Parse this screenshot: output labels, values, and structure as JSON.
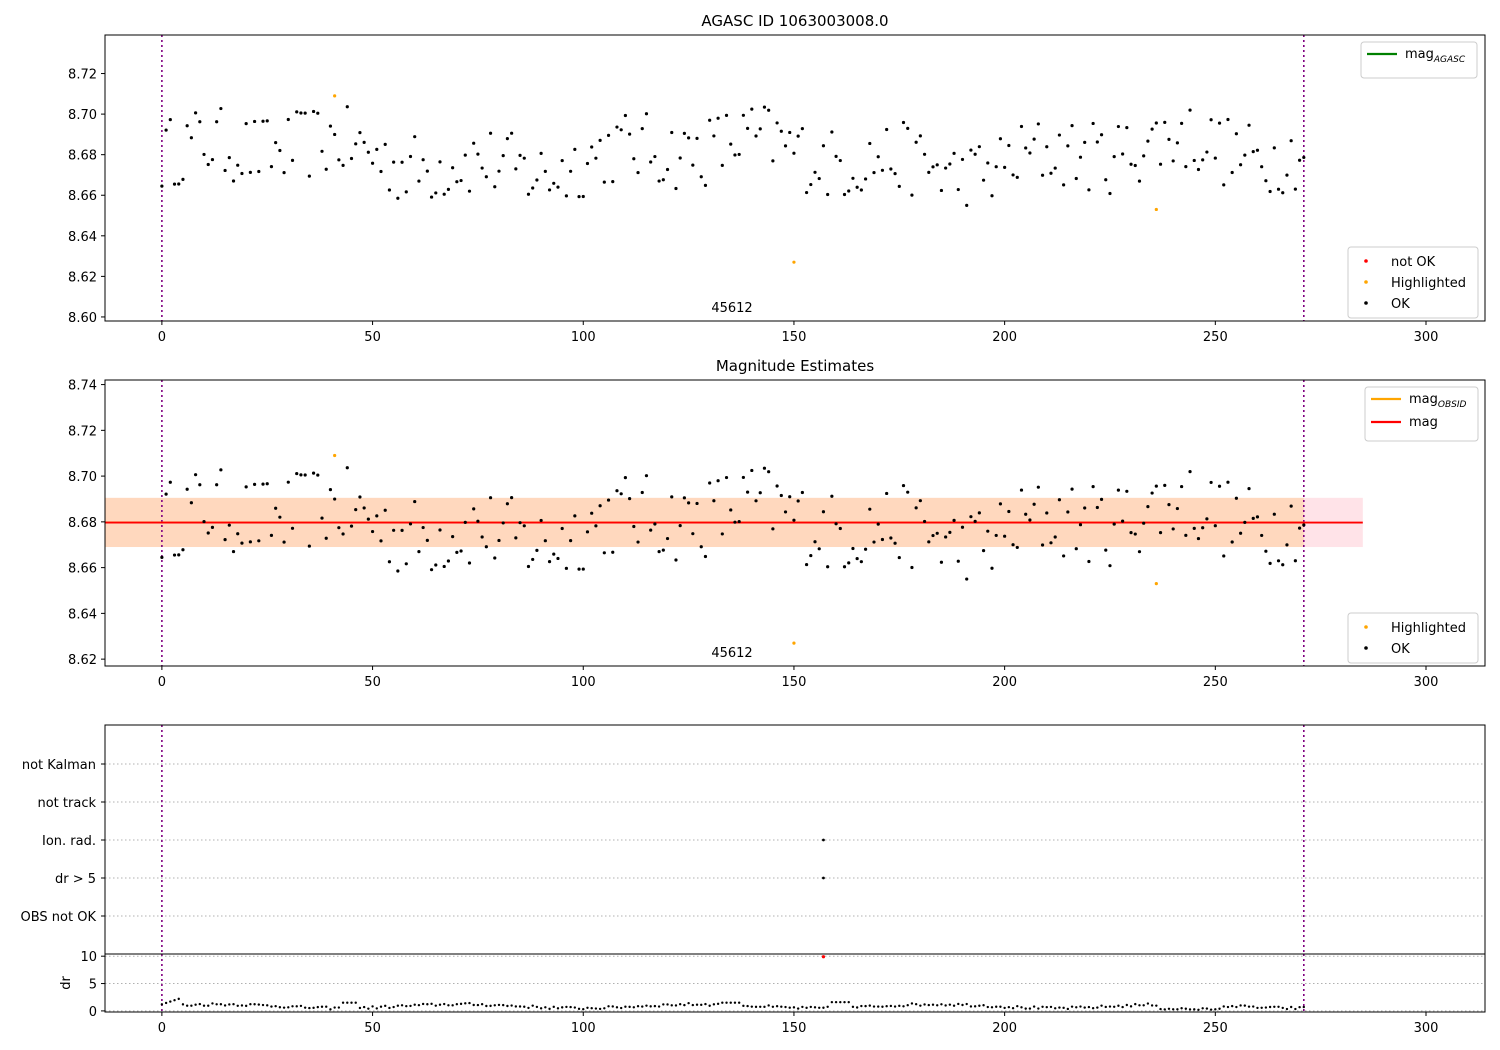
{
  "chart_data": [
    {
      "type": "scatter",
      "title": "AGASC ID 1063003008.0",
      "xlim": [
        -13.5,
        314
      ],
      "ylim": [
        8.598,
        8.739
      ],
      "x_ticks": [
        0,
        50,
        100,
        150,
        200,
        250,
        300
      ],
      "y_ticks": [
        8.6,
        8.62,
        8.64,
        8.66,
        8.68,
        8.7,
        8.72
      ],
      "vlines": [
        0,
        271
      ],
      "obsid_label": {
        "text": "45612",
        "x": 135,
        "y": 8.601
      },
      "legend_lines": [
        {
          "label": "mag",
          "sub": "AGASC",
          "color": "#008000",
          "position": "top-right"
        }
      ],
      "legend_markers": [
        {
          "label": "not OK",
          "color": "#ff0000"
        },
        {
          "label": "Highlighted",
          "color": "#ffa500"
        },
        {
          "label": "OK",
          "color": "#000000"
        }
      ],
      "legend_markers_position": "bottom-right",
      "series": [
        {
          "name": "OK",
          "color": "#000000"
        },
        {
          "name": "Highlighted",
          "color": "#ffa500"
        },
        {
          "name": "not OK",
          "color": "#ff0000"
        }
      ]
    },
    {
      "type": "scatter",
      "title": "Magnitude Estimates",
      "xlim": [
        -13.5,
        314
      ],
      "ylim": [
        8.617,
        8.742
      ],
      "x_ticks": [
        0,
        50,
        100,
        150,
        200,
        250,
        300
      ],
      "y_ticks": [
        8.62,
        8.64,
        8.66,
        8.68,
        8.7,
        8.72,
        8.74
      ],
      "vlines": [
        0,
        271
      ],
      "obsid_label": {
        "text": "45612",
        "x": 135,
        "y": 8.62
      },
      "mag_line": {
        "y": 8.6797,
        "x0": -13.5,
        "x1": 285,
        "color": "#ff0000"
      },
      "mag_band": {
        "y0": 8.669,
        "y1": 8.6905,
        "x0": -13.5,
        "x1": 285,
        "color": "#ffc0cb"
      },
      "obsid_band": {
        "y0": 8.669,
        "y1": 8.6905,
        "x0": -13.5,
        "x1": 271,
        "color": "#ffa500"
      },
      "legend_lines": [
        {
          "label": "mag",
          "sub": "OBSID",
          "color": "#ffa500"
        },
        {
          "label": "mag",
          "sub": "",
          "color": "#ff0000"
        }
      ],
      "legend_lines_position": "top-right",
      "legend_markers": [
        {
          "label": "Highlighted",
          "color": "#ffa500"
        },
        {
          "label": "OK",
          "color": "#000000"
        }
      ],
      "legend_markers_position": "bottom-right",
      "series": [
        {
          "name": "OK",
          "color": "#000000"
        },
        {
          "name": "Highlighted",
          "color": "#ffa500"
        }
      ]
    },
    {
      "type": "scatter",
      "title": "",
      "xlim": [
        -13.5,
        314
      ],
      "categories": [
        "OBS not OK",
        "dr > 5",
        "Ion. rad.",
        "not track",
        "not Kalman"
      ],
      "vlines": [
        0,
        271
      ],
      "flags": [
        {
          "category": "Ion. rad.",
          "x": 157
        },
        {
          "category": "dr > 5",
          "x": 157
        }
      ]
    },
    {
      "type": "scatter",
      "title": "",
      "xlim": [
        -13.5,
        314
      ],
      "ylim": [
        -0.2,
        10.4
      ],
      "x_ticks": [
        0,
        50,
        100,
        150,
        200,
        250,
        300
      ],
      "y_ticks": [
        0,
        5,
        10
      ],
      "ylabel": "dr",
      "vlines": [
        0,
        271
      ],
      "outlier": {
        "x": 157,
        "y": 9.9,
        "color": "#ff0000"
      },
      "series": [
        {
          "name": "dr",
          "color": "#000000"
        }
      ]
    }
  ]
}
